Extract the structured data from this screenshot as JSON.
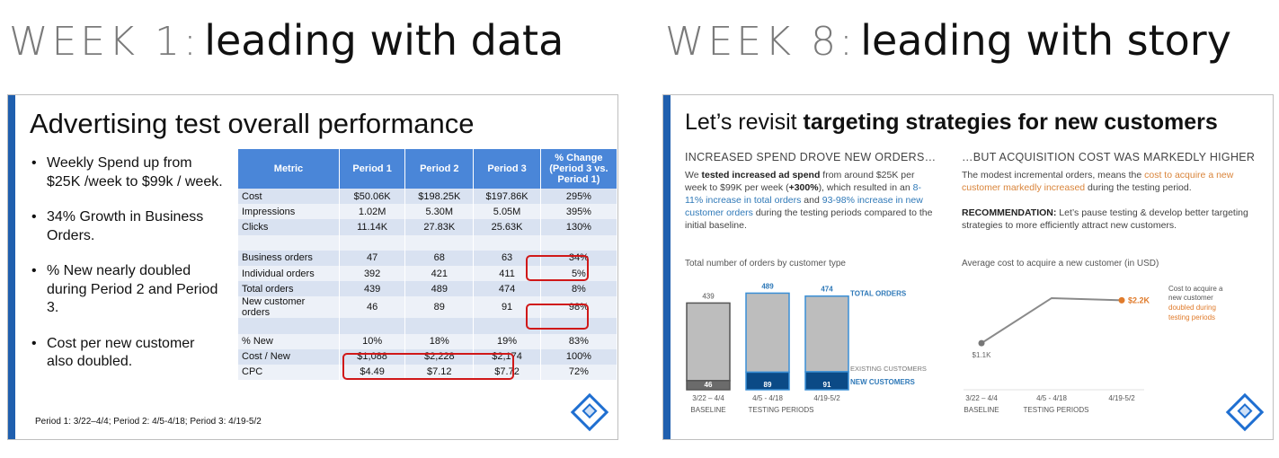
{
  "headings": {
    "left": {
      "week": "WEEK 1:",
      "title": "leading with data"
    },
    "right": {
      "week": "WEEK 8:",
      "title": "leading with story"
    }
  },
  "slide1": {
    "title": "Advertising test overall performance",
    "bullets": [
      "Weekly Spend up from $25K /week to $99k / week.",
      "34% Growth in Business Orders.",
      "% New nearly doubled during Period 2 and Period 3.",
      "Cost per new customer also doubled."
    ],
    "footnote": "Period 1: 3/22–4/4; Period 2: 4/5-4/18; Period 3: 4/19-5/2",
    "table": {
      "headers": [
        "Metric",
        "Period 1",
        "Period 2",
        "Period 3",
        "% Change (Period 3 vs. Period 1)"
      ],
      "rows": [
        [
          "Cost",
          "$50.06K",
          "$198.25K",
          "$197.86K",
          "295%"
        ],
        [
          "Impressions",
          "1.02M",
          "5.30M",
          "5.05M",
          "395%"
        ],
        [
          "Clicks",
          "11.14K",
          "27.83K",
          "25.63K",
          "130%"
        ],
        [
          "",
          "",
          "",
          "",
          ""
        ],
        [
          "Business orders",
          "47",
          "68",
          "63",
          "34%"
        ],
        [
          "Individual orders",
          "392",
          "421",
          "411",
          "5%"
        ],
        [
          "Total orders",
          "439",
          "489",
          "474",
          "8%"
        ],
        [
          "New customer orders",
          "46",
          "89",
          "91",
          "98%"
        ],
        [
          "",
          "",
          "",
          "",
          ""
        ],
        [
          "% New",
          "10%",
          "18%",
          "19%",
          "83%"
        ],
        [
          "Cost / New",
          "$1,088",
          "$2,228",
          "$2,174",
          "100%"
        ],
        [
          "CPC",
          "$4.49",
          "$7.12",
          "$7.72",
          "72%"
        ]
      ]
    }
  },
  "slide2": {
    "title_plain": "Let’s revisit ",
    "title_bold": "targeting strategies for new customers",
    "left": {
      "heading": "INCREASED SPEND DROVE NEW ORDERS…",
      "p1": "We ",
      "p2": "tested increased ad spend",
      "p3": " from around $25K per week to $99K per week (",
      "p4": "+300%",
      "p5": "), which resulted in an ",
      "p6": "8-11% increase in total orders",
      "p7": " and ",
      "p8": "93-98% increase in new customer orders",
      "p9": " during the testing periods compared to the initial baseline.",
      "chart_title": "Total number of orders by customer type"
    },
    "right": {
      "heading": "…BUT ACQUISITION COST WAS MARKEDLY HIGHER",
      "p1": "The modest incremental orders, means the ",
      "p2": "cost to acquire a new customer markedly increased",
      "p3": " during the testing period.",
      "rec_label": "RECOMMENDATION:",
      "rec_text": " Let’s pause testing & develop better targeting strategies to more efficiently attract new customers.",
      "chart_title": "Average cost to acquire a new customer (in USD)",
      "annot1": "Cost to acquire a",
      "annot2": "new customer",
      "annot3": "doubled during",
      "annot4": "testing periods"
    }
  },
  "chart_data": [
    {
      "type": "bar",
      "title": "Total number of orders by customer type",
      "categories": [
        "3/22 – 4/4",
        "4/5 - 4/18",
        "4/19-5/2"
      ],
      "group_labels": [
        "BASELINE",
        "TESTING PERIODS"
      ],
      "series": [
        {
          "name": "EXISTING CUSTOMERS",
          "values": [
            393,
            400,
            383
          ]
        },
        {
          "name": "NEW CUSTOMERS",
          "values": [
            46,
            89,
            91
          ]
        }
      ],
      "totals": [
        439,
        489,
        474
      ],
      "totals_label": "TOTAL ORDERS",
      "colors": {
        "existing": "#bdbdbd",
        "new": "#0b4a86",
        "total_text": "#2f79b8",
        "baseline_border": "#555555",
        "testing_border": "#3a8fd6"
      }
    },
    {
      "type": "line",
      "title": "Average cost to acquire a new customer (in USD)",
      "categories": [
        "3/22 – 4/4",
        "4/5 - 4/18",
        "4/19-5/2"
      ],
      "group_labels": [
        "BASELINE",
        "TESTING PERIODS"
      ],
      "values": [
        1088,
        2228,
        2174
      ],
      "point_labels": [
        "$1.1K",
        "",
        "$2.2K"
      ],
      "colors": {
        "line": "#8a8a8a",
        "highlight": "#e07b2b"
      }
    }
  ]
}
